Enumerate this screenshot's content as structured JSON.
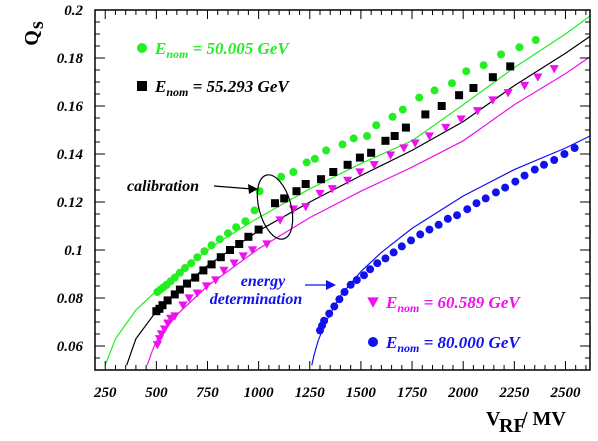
{
  "chart_data": {
    "type": "scatter",
    "xlabel": "V_RF / MV",
    "ylabel": "Q_s",
    "xlim": [
      200,
      2620
    ],
    "ylim": [
      0.05,
      0.2
    ],
    "x_ticks": [
      250,
      500,
      750,
      1000,
      1250,
      1500,
      1750,
      2000,
      2250,
      2500
    ],
    "y_ticks": [
      0.06,
      0.08,
      0.1,
      0.12,
      0.14,
      0.16,
      0.18,
      0.2
    ],
    "grid": false,
    "legend_position": "inside",
    "series": [
      {
        "name": "E_nom = 50.005 GeV",
        "energy": "50.005",
        "color": "#22ee22",
        "marker": "circle",
        "fit_curve": [
          [
            250,
            0.052
          ],
          [
            300,
            0.063
          ],
          [
            400,
            0.075
          ],
          [
            500,
            0.083
          ],
          [
            600,
            0.0905
          ],
          [
            800,
            0.103
          ],
          [
            1000,
            0.1135
          ],
          [
            1250,
            0.1255
          ],
          [
            1500,
            0.136
          ],
          [
            1750,
            0.1455
          ],
          [
            2000,
            0.1605
          ],
          [
            2250,
            0.176
          ],
          [
            2500,
            0.19
          ],
          [
            2620,
            0.1975
          ]
        ],
        "points": [
          [
            505,
            0.0825
          ],
          [
            520,
            0.0835
          ],
          [
            535,
            0.0845
          ],
          [
            550,
            0.0855
          ],
          [
            570,
            0.087
          ],
          [
            590,
            0.0885
          ],
          [
            615,
            0.0905
          ],
          [
            640,
            0.0925
          ],
          [
            670,
            0.0945
          ],
          [
            700,
            0.097
          ],
          [
            735,
            0.0995
          ],
          [
            770,
            0.102
          ],
          [
            810,
            0.1045
          ],
          [
            850,
            0.107
          ],
          [
            890,
            0.1095
          ],
          [
            935,
            0.112
          ],
          [
            980,
            0.1165
          ],
          [
            1005,
            0.1245
          ],
          [
            1110,
            0.1305
          ],
          [
            1170,
            0.1325
          ],
          [
            1235,
            0.1365
          ],
          [
            1275,
            0.138
          ],
          [
            1330,
            0.1415
          ],
          [
            1410,
            0.144
          ],
          [
            1465,
            0.1465
          ],
          [
            1530,
            0.1475
          ],
          [
            1575,
            0.152
          ],
          [
            1655,
            0.1555
          ],
          [
            1705,
            0.1585
          ],
          [
            1785,
            0.1635
          ],
          [
            1860,
            0.1665
          ],
          [
            1945,
            0.1695
          ],
          [
            2015,
            0.1745
          ],
          [
            2100,
            0.177
          ],
          [
            2185,
            0.1815
          ],
          [
            2275,
            0.1845
          ],
          [
            2355,
            0.1875
          ]
        ]
      },
      {
        "name": "E_nom = 55.293 GeV",
        "energy": "55.293",
        "color": "#000000",
        "marker": "square",
        "fit_curve": [
          [
            355,
            0.052
          ],
          [
            400,
            0.063
          ],
          [
            500,
            0.0745
          ],
          [
            600,
            0.0825
          ],
          [
            750,
            0.0935
          ],
          [
            1000,
            0.108
          ],
          [
            1250,
            0.12
          ],
          [
            1500,
            0.131
          ],
          [
            1750,
            0.1415
          ],
          [
            2000,
            0.1535
          ],
          [
            2250,
            0.1685
          ],
          [
            2500,
            0.182
          ],
          [
            2620,
            0.189
          ]
        ],
        "points": [
          [
            500,
            0.0745
          ],
          [
            515,
            0.0755
          ],
          [
            530,
            0.077
          ],
          [
            555,
            0.079
          ],
          [
            590,
            0.0815
          ],
          [
            615,
            0.0835
          ],
          [
            650,
            0.086
          ],
          [
            690,
            0.0885
          ],
          [
            730,
            0.0915
          ],
          [
            770,
            0.094
          ],
          [
            815,
            0.097
          ],
          [
            860,
            0.1
          ],
          [
            905,
            0.1025
          ],
          [
            950,
            0.1055
          ],
          [
            1000,
            0.1085
          ],
          [
            1080,
            0.1195
          ],
          [
            1125,
            0.1215
          ],
          [
            1185,
            0.1245
          ],
          [
            1230,
            0.1275
          ],
          [
            1305,
            0.1295
          ],
          [
            1365,
            0.1325
          ],
          [
            1435,
            0.1355
          ],
          [
            1495,
            0.1385
          ],
          [
            1550,
            0.1405
          ],
          [
            1620,
            0.1455
          ],
          [
            1665,
            0.1475
          ],
          [
            1720,
            0.151
          ],
          [
            1815,
            0.1565
          ],
          [
            1895,
            0.16
          ],
          [
            1980,
            0.1645
          ],
          [
            2050,
            0.1675
          ],
          [
            2145,
            0.172
          ],
          [
            2230,
            0.1765
          ]
        ]
      },
      {
        "name": "E_nom = 60.589 GeV",
        "energy": "60.589",
        "color": "#ee11ee",
        "marker": "triangle-down",
        "fit_curve": [
          [
            455,
            0.052
          ],
          [
            480,
            0.058
          ],
          [
            500,
            0.062
          ],
          [
            600,
            0.073
          ],
          [
            750,
            0.085
          ],
          [
            1000,
            0.1005
          ],
          [
            1250,
            0.1135
          ],
          [
            1500,
            0.1245
          ],
          [
            1750,
            0.1345
          ],
          [
            2000,
            0.1455
          ],
          [
            2250,
            0.1605
          ],
          [
            2500,
            0.1735
          ],
          [
            2620,
            0.1805
          ]
        ],
        "points": [
          [
            505,
            0.0605
          ],
          [
            515,
            0.063
          ],
          [
            525,
            0.065
          ],
          [
            540,
            0.067
          ],
          [
            555,
            0.0695
          ],
          [
            570,
            0.0715
          ],
          [
            590,
            0.0725
          ],
          [
            630,
            0.077
          ],
          [
            660,
            0.08
          ],
          [
            700,
            0.082
          ],
          [
            745,
            0.085
          ],
          [
            790,
            0.0875
          ],
          [
            830,
            0.0915
          ],
          [
            880,
            0.0945
          ],
          [
            925,
            0.0975
          ],
          [
            970,
            0.1
          ],
          [
            1040,
            0.1025
          ],
          [
            1105,
            0.1125
          ],
          [
            1170,
            0.117
          ],
          [
            1230,
            0.118
          ],
          [
            1300,
            0.1235
          ],
          [
            1360,
            0.1255
          ],
          [
            1435,
            0.129
          ],
          [
            1495,
            0.1325
          ],
          [
            1565,
            0.1355
          ],
          [
            1645,
            0.1395
          ],
          [
            1710,
            0.1425
          ],
          [
            1765,
            0.1445
          ],
          [
            1835,
            0.1475
          ],
          [
            1915,
            0.151
          ],
          [
            1990,
            0.1545
          ],
          [
            2070,
            0.158
          ],
          [
            2145,
            0.1625
          ],
          [
            2220,
            0.1655
          ],
          [
            2300,
            0.1685
          ],
          [
            2365,
            0.172
          ],
          [
            2445,
            0.1755
          ]
        ]
      },
      {
        "name": "E_nom = 80.000 GeV",
        "energy": "80.000",
        "color": "#1111ee",
        "marker": "circle",
        "fit_curve": [
          [
            1260,
            0.052
          ],
          [
            1270,
            0.056
          ],
          [
            1290,
            0.062
          ],
          [
            1320,
            0.0685
          ],
          [
            1350,
            0.0735
          ],
          [
            1400,
            0.081
          ],
          [
            1500,
            0.091
          ],
          [
            1600,
            0.099
          ],
          [
            1750,
            0.109
          ],
          [
            2000,
            0.1225
          ],
          [
            2250,
            0.1335
          ],
          [
            2500,
            0.1425
          ],
          [
            2620,
            0.1475
          ]
        ],
        "points": [
          [
            1300,
            0.0665
          ],
          [
            1310,
            0.0685
          ],
          [
            1320,
            0.0705
          ],
          [
            1345,
            0.0735
          ],
          [
            1370,
            0.0765
          ],
          [
            1395,
            0.0795
          ],
          [
            1420,
            0.0825
          ],
          [
            1450,
            0.0855
          ],
          [
            1480,
            0.0875
          ],
          [
            1515,
            0.0895
          ],
          [
            1545,
            0.092
          ],
          [
            1580,
            0.0945
          ],
          [
            1620,
            0.0965
          ],
          [
            1660,
            0.099
          ],
          [
            1700,
            0.1015
          ],
          [
            1745,
            0.104
          ],
          [
            1790,
            0.1065
          ],
          [
            1835,
            0.1085
          ],
          [
            1880,
            0.1105
          ],
          [
            1925,
            0.113
          ],
          [
            1970,
            0.1145
          ],
          [
            2020,
            0.117
          ],
          [
            2065,
            0.1195
          ],
          [
            2110,
            0.1215
          ],
          [
            2160,
            0.124
          ],
          [
            2205,
            0.126
          ],
          [
            2255,
            0.1285
          ],
          [
            2300,
            0.131
          ],
          [
            2350,
            0.1335
          ],
          [
            2395,
            0.1355
          ],
          [
            2445,
            0.1375
          ],
          [
            2495,
            0.14
          ],
          [
            2545,
            0.1425
          ]
        ]
      }
    ],
    "annotations": [
      {
        "id": "calibration",
        "text": "calibration",
        "color": "#000000"
      },
      {
        "id": "energy",
        "lines": [
          "energy",
          "determination"
        ],
        "color": "#1111ee"
      }
    ]
  }
}
